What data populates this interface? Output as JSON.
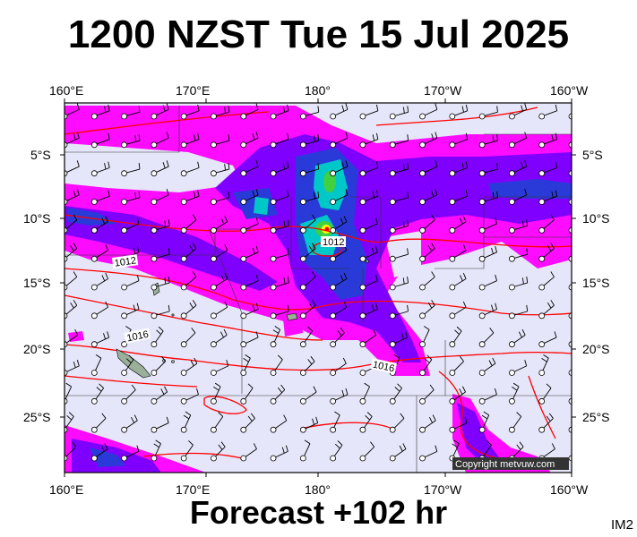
{
  "header": {
    "title": "1200 NZST Tue 15 Jul 2025"
  },
  "footer": {
    "forecast": "Forecast +102 hr"
  },
  "tag": "IM2",
  "copyright": "Copyright metvuw.com",
  "map": {
    "top_lon_labels": [
      "160°E",
      "170°E",
      "180°",
      "170°W",
      "160°W"
    ],
    "bottom_lon_labels": [
      "160°E",
      "170°E",
      "180°",
      "170°W",
      "160°W"
    ],
    "left_lat_labels": [
      "5°S",
      "10°S",
      "15°S",
      "20°S",
      "25°S"
    ],
    "right_lat_labels": [
      "5°S",
      "10°S",
      "15°S",
      "20°S",
      "25°S"
    ],
    "isobar_labels": [
      "1012",
      "1012",
      "1016",
      "1016"
    ],
    "colors": {
      "background": "#e6e6fa",
      "rain_light": "#ff00ff",
      "rain_medium": "#8000ff",
      "rain_heavy": "#2222cc",
      "rain_intense": "#00c8c8",
      "rain_extreme": "#40d040",
      "isobar": "#ff0000"
    }
  }
}
